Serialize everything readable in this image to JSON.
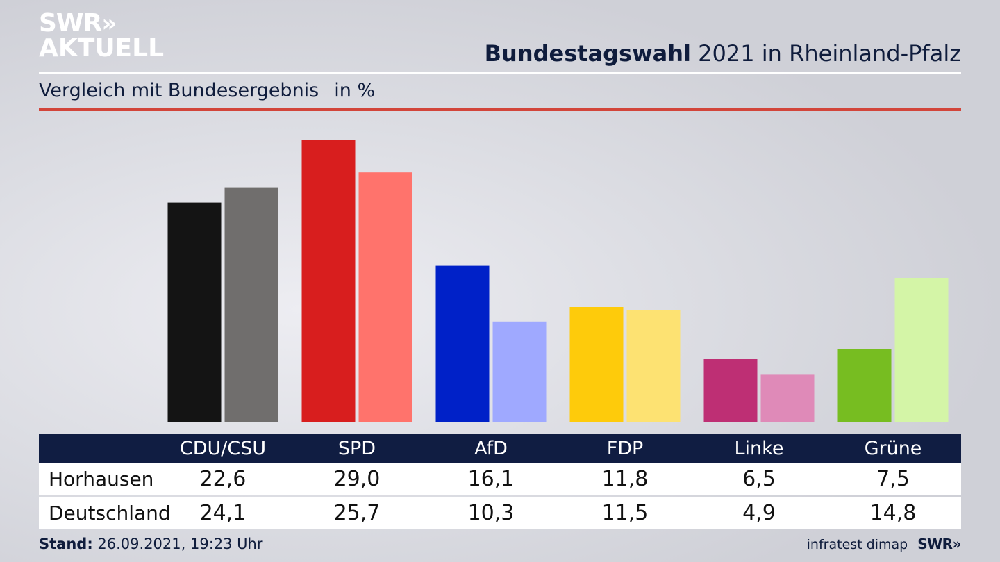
{
  "logo": {
    "line1": "SWR",
    "chevrons": "»",
    "line2": "AKTUELL"
  },
  "title": {
    "bold": "Bundestagswahl",
    "rest": " 2021 in Rheinland-Pfalz"
  },
  "subtitle": {
    "text": "Vergleich mit Bundesergebnis",
    "unit": "in %"
  },
  "colors": {
    "accent_rule": "#d2453a",
    "table_header": "#101d42",
    "title_text": "#0f1c3c"
  },
  "chart_data": {
    "type": "bar",
    "categories": [
      "CDU/CSU",
      "SPD",
      "AfD",
      "FDP",
      "Linke",
      "Grüne"
    ],
    "series": [
      {
        "name": "Horhausen",
        "values": [
          22.6,
          29.0,
          16.1,
          11.8,
          6.5,
          7.5
        ],
        "display": [
          "22,6",
          "29,0",
          "16,1",
          "11,8",
          "6,5",
          "7,5"
        ],
        "colors": [
          "#141414",
          "#d81e1e",
          "#0021c8",
          "#fecb0b",
          "#be2f74",
          "#77bd21"
        ]
      },
      {
        "name": "Deutschland",
        "values": [
          24.1,
          25.7,
          10.3,
          11.5,
          4.9,
          14.8
        ],
        "display": [
          "24,1",
          "25,7",
          "10,3",
          "11,5",
          "4,9",
          "14,8"
        ],
        "colors": [
          "#706e6d",
          "#ff736c",
          "#9fa9ff",
          "#fde272",
          "#df8ab8",
          "#d4f5a7"
        ]
      }
    ],
    "title": "Bundestagswahl 2021 in Rheinland-Pfalz",
    "xlabel": "",
    "ylabel": "",
    "ylim": [
      0,
      30
    ],
    "grid": false,
    "legend": "none"
  },
  "footer": {
    "stand_label": "Stand:",
    "stand_value": " 26.09.2021, 19:23 Uhr",
    "source": "infratest dimap",
    "brand": "SWR»"
  }
}
